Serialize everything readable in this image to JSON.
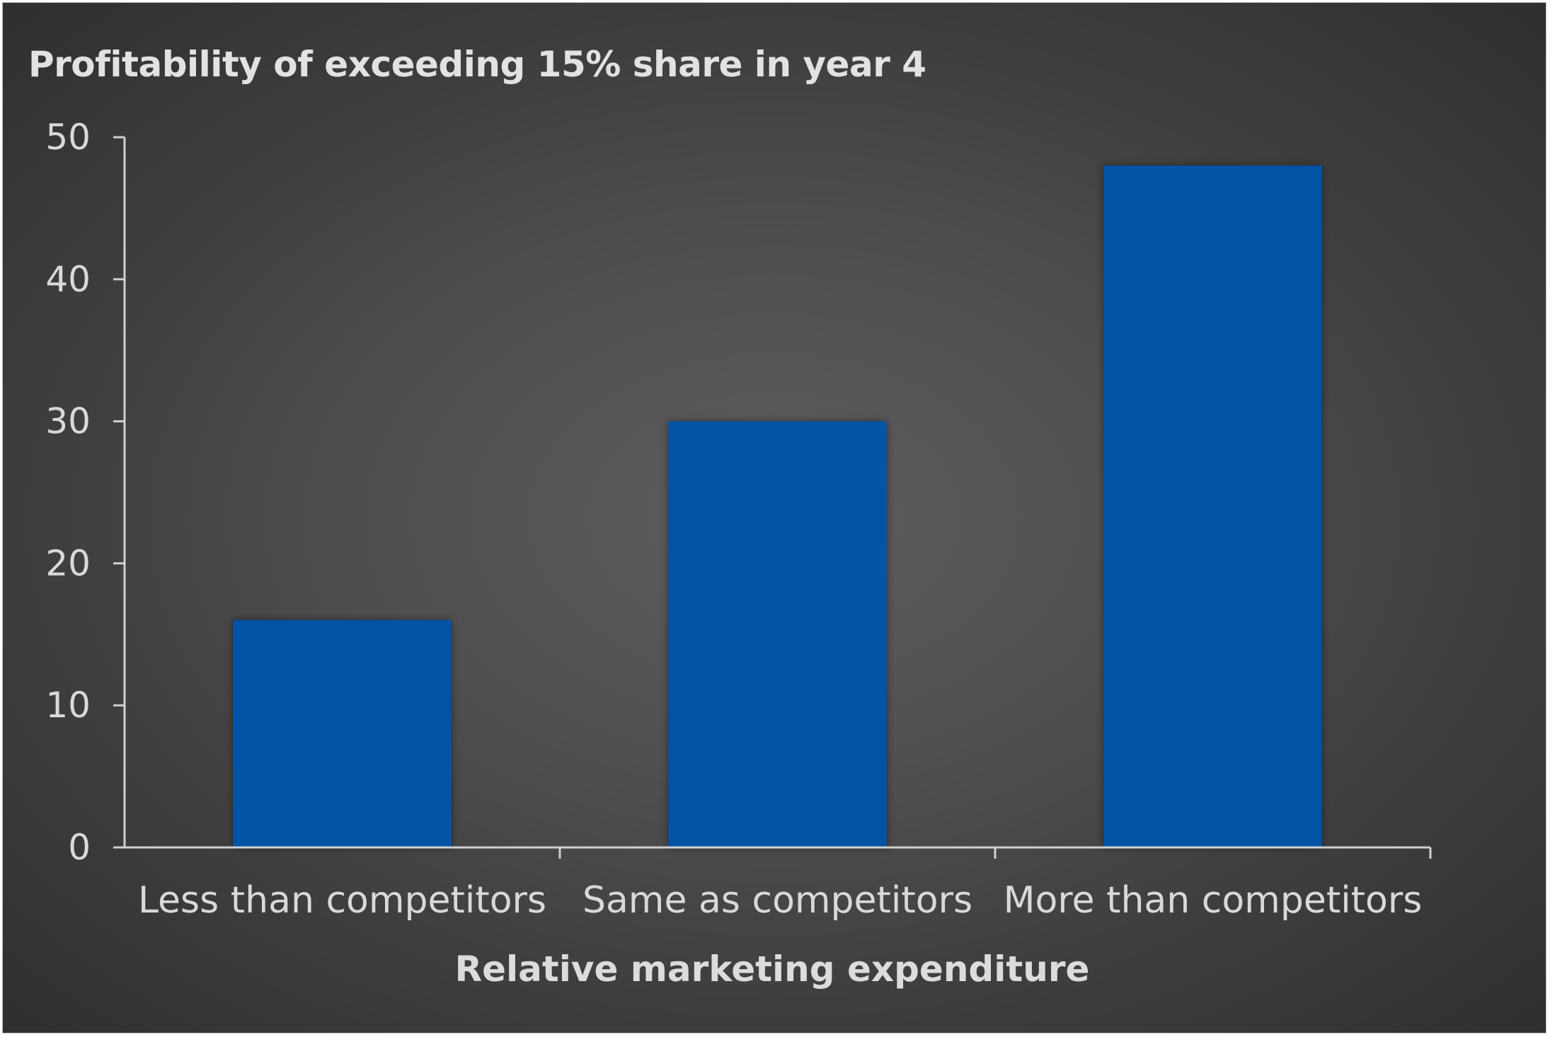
{
  "chart_data": {
    "type": "bar",
    "title": "Profitability of exceeding 15% share in year 4",
    "xlabel": "Relative marketing expenditure",
    "ylabel": "",
    "categories": [
      "Less than competitors",
      "Same as competitors",
      "More than competitors"
    ],
    "values": [
      16,
      30,
      48
    ],
    "ylim": [
      0,
      50
    ],
    "yticks": [
      "0",
      "10",
      "20",
      "30",
      "40",
      "50"
    ],
    "grid": false,
    "legend": "none",
    "colors": {
      "bar": "#0052a5",
      "axis": "#d0d0d0",
      "background": "#4a4a4a"
    }
  }
}
